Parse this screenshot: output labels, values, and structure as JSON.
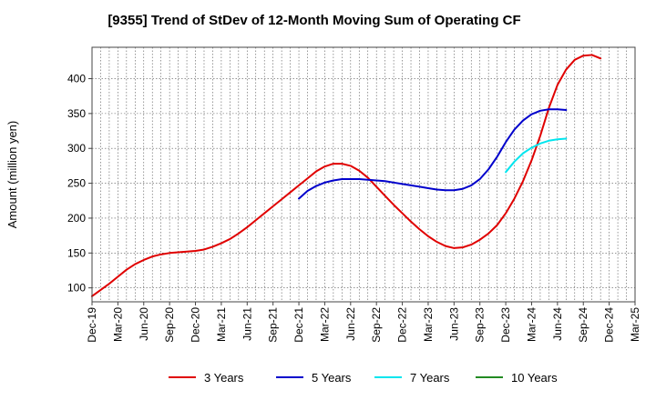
{
  "chart_data": {
    "type": "line",
    "title": "[9355]  Trend of StDev of 12-Month Moving Sum of Operating CF",
    "xlabel": "",
    "ylabel": "Amount (million yen)",
    "ylim": [
      80,
      445
    ],
    "yticks": [
      100,
      150,
      200,
      250,
      300,
      350,
      400
    ],
    "x_tick_labels": [
      "Dec-19",
      "Mar-20",
      "Jun-20",
      "Sep-20",
      "Dec-20",
      "Mar-21",
      "Jun-21",
      "Sep-21",
      "Dec-21",
      "Mar-22",
      "Jun-22",
      "Sep-22",
      "Dec-22",
      "Mar-23",
      "Jun-23",
      "Sep-23",
      "Dec-23",
      "Mar-24",
      "Jun-24",
      "Sep-24",
      "Dec-24",
      "Mar-25"
    ],
    "x_months_total": 63,
    "grid": true,
    "legend_position": "bottom",
    "series": [
      {
        "name": "3 Years",
        "color": "#e00000",
        "start_month": 0,
        "values": [
          88,
          97,
          106,
          116,
          126,
          134,
          140,
          145,
          148,
          150,
          151,
          152,
          153,
          155,
          159,
          164,
          170,
          178,
          187,
          197,
          207,
          217,
          227,
          237,
          247,
          257,
          267,
          274,
          278,
          278,
          275,
          268,
          258,
          245,
          232,
          219,
          207,
          195,
          184,
          174,
          166,
          160,
          157,
          158,
          162,
          169,
          178,
          190,
          207,
          228,
          253,
          283,
          318,
          358,
          391,
          413,
          427,
          433,
          434,
          429
        ]
      },
      {
        "name": "5 Years",
        "color": "#0000cc",
        "start_month": 24,
        "values": [
          228,
          239,
          246,
          251,
          254,
          256,
          256,
          256,
          255,
          254,
          253,
          251,
          249,
          247,
          245,
          243,
          241,
          240,
          240,
          242,
          247,
          256,
          270,
          288,
          309,
          327,
          340,
          349,
          354,
          356,
          356,
          355
        ]
      },
      {
        "name": "7 Years",
        "color": "#00e5ee",
        "start_month": 48,
        "values": [
          266,
          281,
          293,
          301,
          307,
          311,
          313,
          314
        ]
      },
      {
        "name": "10 Years",
        "color": "#228b22",
        "start_month": null,
        "values": []
      }
    ]
  }
}
